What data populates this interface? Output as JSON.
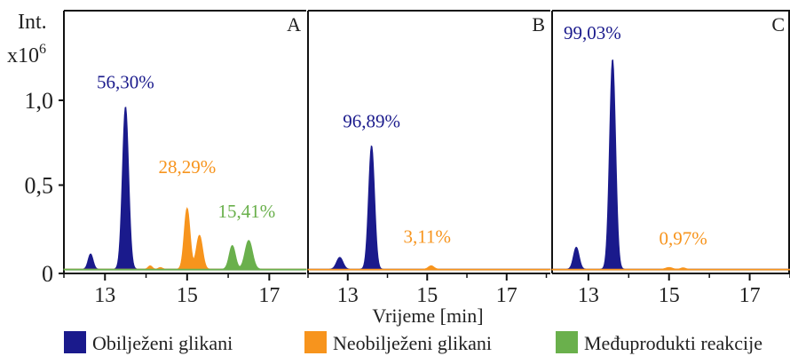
{
  "chart_data": {
    "type": "line",
    "y_axis": {
      "label_line1": "Int.",
      "label_line2": "x10",
      "label_exp": "6",
      "ticks": [
        {
          "label": "0",
          "value": 0
        },
        {
          "label": "0,5",
          "value": 0.5
        },
        {
          "label": "1,0",
          "value": 1.0
        }
      ],
      "ylim": [
        0,
        1.27
      ]
    },
    "x_axis": {
      "label": "Vrijeme [min]",
      "ticks": [
        {
          "label": "13",
          "value": 13
        },
        {
          "label": "15",
          "value": 15
        },
        {
          "label": "17",
          "value": 17
        }
      ]
    },
    "legend": {
      "placement": "bottom",
      "items": [
        {
          "label": "Obilježeni glikani",
          "color": "#1a1a8c"
        },
        {
          "label": "Neobilježeni glikani",
          "color": "#f7941d"
        },
        {
          "label": "Međuprodukti reakcije",
          "color": "#6ab04c"
        }
      ]
    },
    "panels": [
      {
        "id": "A",
        "xlim": [
          12.0,
          17.9
        ],
        "series": [
          {
            "color": "#1a1a8c",
            "peaks": [
              [
                12.65,
                0.09,
                0.06
              ],
              [
                13.5,
                0.96,
                0.075
              ]
            ],
            "label": {
              "text": "56,30%",
              "x": 13.5,
              "y": 1.07
            }
          },
          {
            "color": "#f7941d",
            "peaks": [
              [
                14.1,
                0.02,
                0.05
              ],
              [
                14.35,
                0.01,
                0.05
              ],
              [
                15.0,
                0.36,
                0.07
              ],
              [
                15.3,
                0.2,
                0.075
              ]
            ],
            "label": {
              "text": "28,29%",
              "x": 15.0,
              "y": 0.57
            }
          },
          {
            "color": "#6ab04c",
            "peaks": [
              [
                16.1,
                0.14,
                0.075
              ],
              [
                16.5,
                0.17,
                0.09
              ]
            ],
            "label": {
              "text": "15,41%",
              "x": 16.45,
              "y": 0.31
            }
          }
        ]
      },
      {
        "id": "B",
        "xlim": [
          12.0,
          18.1
        ],
        "series": [
          {
            "color": "#1a1a8c",
            "peaks": [
              [
                12.8,
                0.07,
                0.08
              ],
              [
                13.6,
                0.73,
                0.075
              ]
            ],
            "label": {
              "text": "96,89%",
              "x": 13.6,
              "y": 0.84
            }
          },
          {
            "color": "#f7941d",
            "peaks": [
              [
                15.1,
                0.02,
                0.07
              ]
            ],
            "label": {
              "text": "3,11%",
              "x": 15.0,
              "y": 0.16
            }
          }
        ]
      },
      {
        "id": "C",
        "xlim": [
          12.1,
          18.0
        ],
        "series": [
          {
            "color": "#1a1a8c",
            "peaks": [
              [
                12.7,
                0.13,
                0.07
              ],
              [
                13.6,
                1.24,
                0.075
              ]
            ],
            "label": {
              "text": "99,03%",
              "x": 13.1,
              "y": 1.36
            }
          },
          {
            "color": "#f7941d",
            "peaks": [
              [
                15.0,
                0.01,
                0.08
              ],
              [
                15.35,
                0.008,
                0.06
              ]
            ],
            "label": {
              "text": "0,97%",
              "x": 15.35,
              "y": 0.15
            }
          }
        ]
      }
    ]
  }
}
